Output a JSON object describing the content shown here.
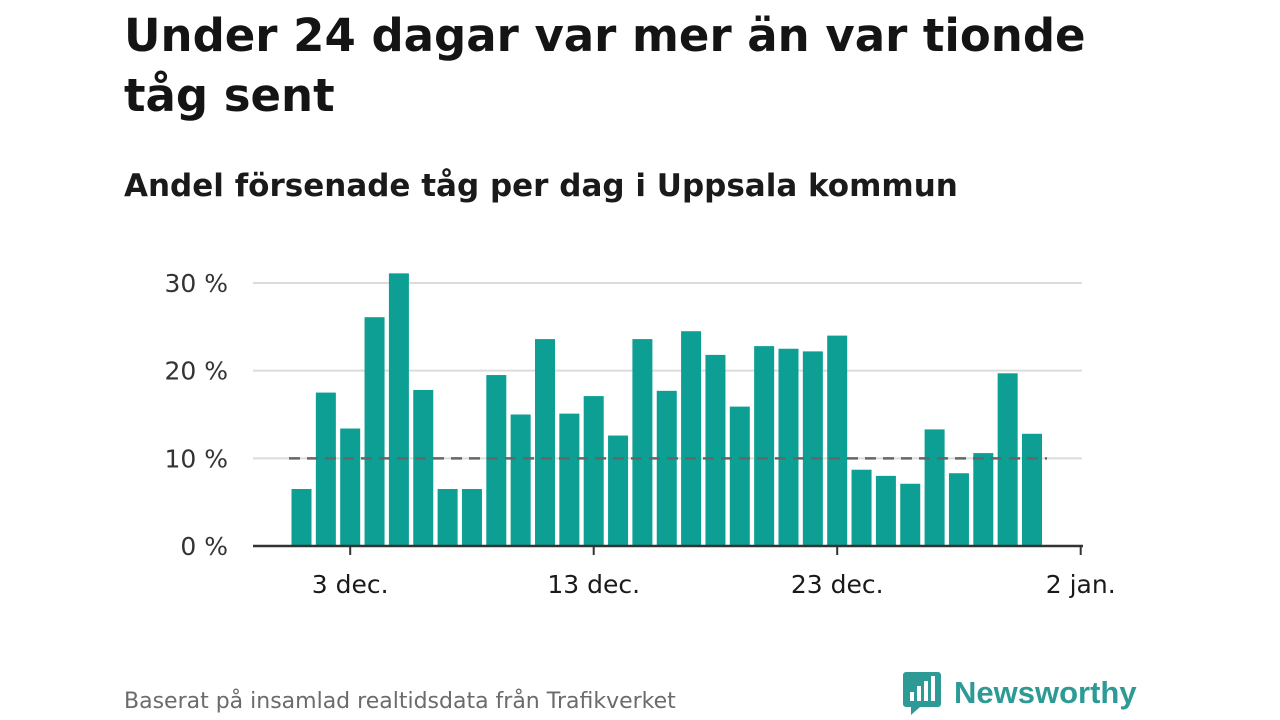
{
  "title": "Under 24 dagar var mer än var tionde tåg sent",
  "subtitle": "Andel försenade tåg per dag i Uppsala kommun",
  "footer": "Baserat på insamlad realtidsdata från Trafikverket",
  "brand": {
    "name": "Newsworthy",
    "icon": "bar-chart-speech-bubble-icon",
    "color": "#2d9a96"
  },
  "colors": {
    "bar": "#0d9e94",
    "reference_line": "#666666",
    "grid": "#dcdcdc",
    "axis": "#333333"
  },
  "chart_data": {
    "type": "bar",
    "x_start": "2023-12-01",
    "x": [
      "2023-12-01",
      "2023-12-02",
      "2023-12-03",
      "2023-12-04",
      "2023-12-05",
      "2023-12-06",
      "2023-12-07",
      "2023-12-08",
      "2023-12-09",
      "2023-12-10",
      "2023-12-11",
      "2023-12-12",
      "2023-12-13",
      "2023-12-14",
      "2023-12-15",
      "2023-12-16",
      "2023-12-17",
      "2023-12-18",
      "2023-12-19",
      "2023-12-20",
      "2023-12-21",
      "2023-12-22",
      "2023-12-23",
      "2023-12-24",
      "2023-12-25",
      "2023-12-26",
      "2023-12-27",
      "2023-12-28",
      "2023-12-29",
      "2023-12-30",
      "2023-12-31"
    ],
    "values": [
      6.5,
      17.5,
      13.4,
      26.1,
      31.1,
      17.8,
      6.5,
      6.5,
      19.5,
      15.0,
      23.6,
      15.1,
      17.1,
      12.6,
      23.6,
      17.7,
      24.5,
      21.8,
      15.9,
      22.8,
      22.5,
      22.2,
      24.0,
      8.7,
      8.0,
      7.1,
      13.3,
      8.3,
      10.6,
      19.7,
      12.8
    ],
    "unit": "%",
    "ylim": [
      0,
      30
    ],
    "y_ticks": [
      0,
      10,
      20,
      30
    ],
    "y_tick_labels": [
      "0 %",
      "10 %",
      "20 %",
      "30 %"
    ],
    "x_ticks": [
      "2023-12-03",
      "2023-12-13",
      "2023-12-23",
      "2024-01-02"
    ],
    "x_tick_labels": [
      "3 dec.",
      "13 dec.",
      "23 dec.",
      "2 jan."
    ],
    "reference_line": {
      "value": 10,
      "style": "dashed"
    },
    "grid": true,
    "legend": "none",
    "title": "",
    "xlabel": "",
    "ylabel": ""
  }
}
